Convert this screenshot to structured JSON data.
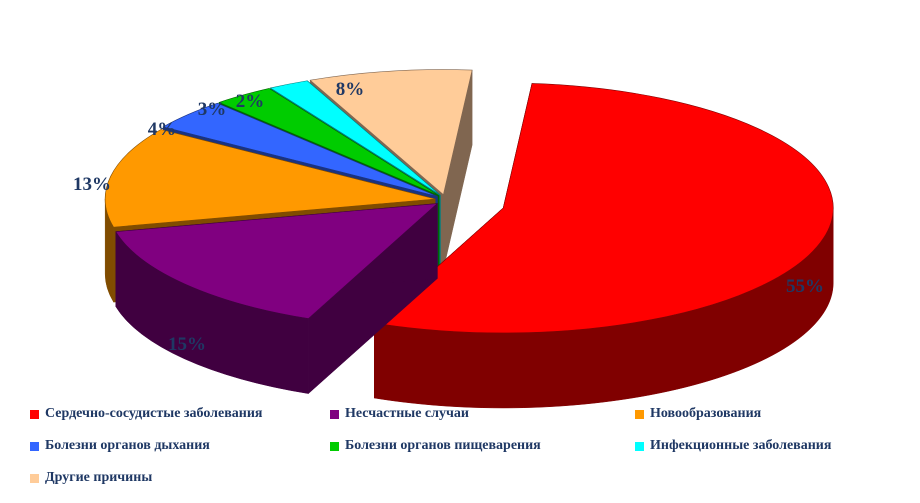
{
  "chart_data": {
    "type": "pie",
    "style": "3d-exploded",
    "unit": "%",
    "slices": [
      {
        "label": "Сердечно-сосудистые заболевания",
        "value": 55,
        "value_label": "55%",
        "color": "#ff0000",
        "side_color": "#800000"
      },
      {
        "label": "Несчастные случаи",
        "value": 15,
        "value_label": "15%",
        "color": "#800080",
        "side_color": "#400040"
      },
      {
        "label": "Новообразования",
        "value": 13,
        "value_label": "13%",
        "color": "#ff9900",
        "side_color": "#804c00"
      },
      {
        "label": "Болезни органов дыхания",
        "value": 4,
        "value_label": "4%",
        "color": "#3366ff",
        "side_color": "#1a3380"
      },
      {
        "label": "Болезни органов пищеварения",
        "value": 3,
        "value_label": "3%",
        "color": "#00cc00",
        "side_color": "#006600"
      },
      {
        "label": "Инфекционные заболевания",
        "value": 2,
        "value_label": "2%",
        "color": "#00ffff",
        "side_color": "#008080"
      },
      {
        "label": "Другие причины",
        "value": 8,
        "value_label": "8%",
        "color": "#ffcc99",
        "side_color": "#806650"
      }
    ],
    "legend_position": "bottom"
  }
}
